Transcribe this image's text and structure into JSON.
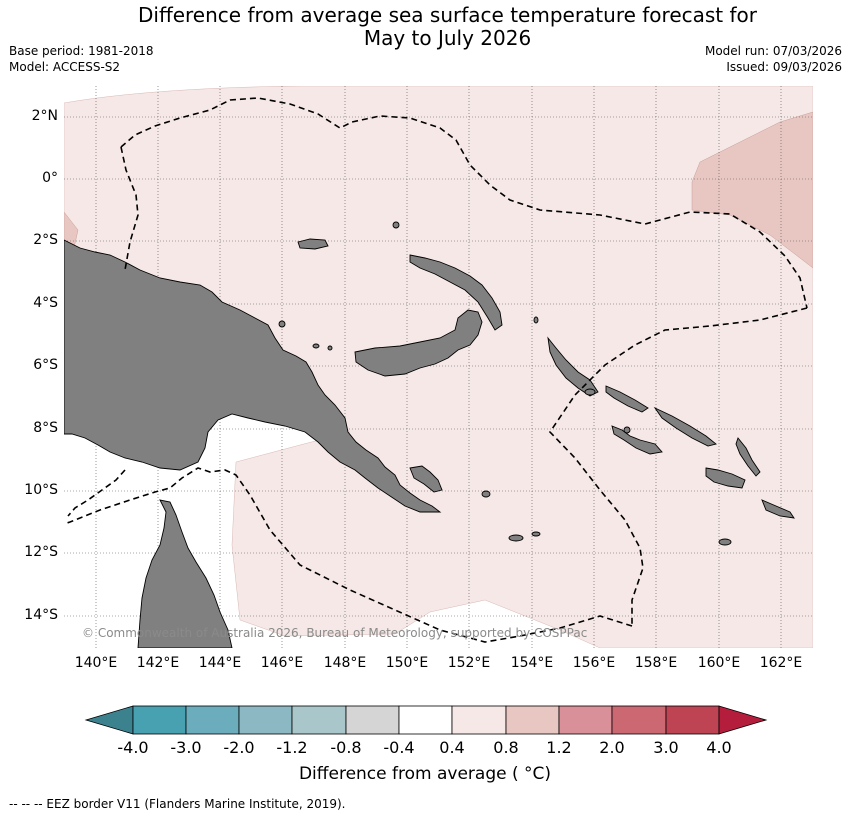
{
  "title_line1": "Difference from average sea surface temperature forecast for",
  "title_line2": "May to July 2026",
  "base_period": "Base period: 1981-2018",
  "model": "Model: ACCESS-S2",
  "model_run": "Model run: 07/03/2026",
  "issued": "Issued: 09/03/2026",
  "map": {
    "lat_labels": [
      "2°N",
      "0°",
      "2°S",
      "4°S",
      "6°S",
      "8°S",
      "10°S",
      "12°S",
      "14°S"
    ],
    "lon_labels": [
      "140°E",
      "142°E",
      "144°E",
      "146°E",
      "148°E",
      "150°E",
      "152°E",
      "154°E",
      "156°E",
      "158°E",
      "160°E",
      "162°E"
    ],
    "copyright": "© Commonwealth of Australia 2026, Bureau of Meteorology, supported by COSPPac",
    "land_color": "#808080",
    "anomaly_0_4_to_0_8_color": "#f5e8e6",
    "anomaly_0_8_to_1_2_color": "#e8c6c2"
  },
  "colorbar": {
    "title": "Difference from average ( °C)",
    "tick_labels": [
      "-4.0",
      "-3.0",
      "-2.0",
      "-1.2",
      "-0.8",
      "-0.4",
      "0.4",
      "0.8",
      "1.2",
      "2.0",
      "3.0",
      "4.0"
    ],
    "colors": [
      "#3c818e",
      "#48a1b1",
      "#6cadbd",
      "#8bb8c2",
      "#a9c6cb",
      "#d5d5d5",
      "#ffffff",
      "#f5e8e6",
      "#e8c6c2",
      "#d99098",
      "#cb6872",
      "#be4454",
      "#b51d3c"
    ]
  },
  "footer": "--  --  -- EEZ border V11 (Flanders Marine Institute, 2019)."
}
